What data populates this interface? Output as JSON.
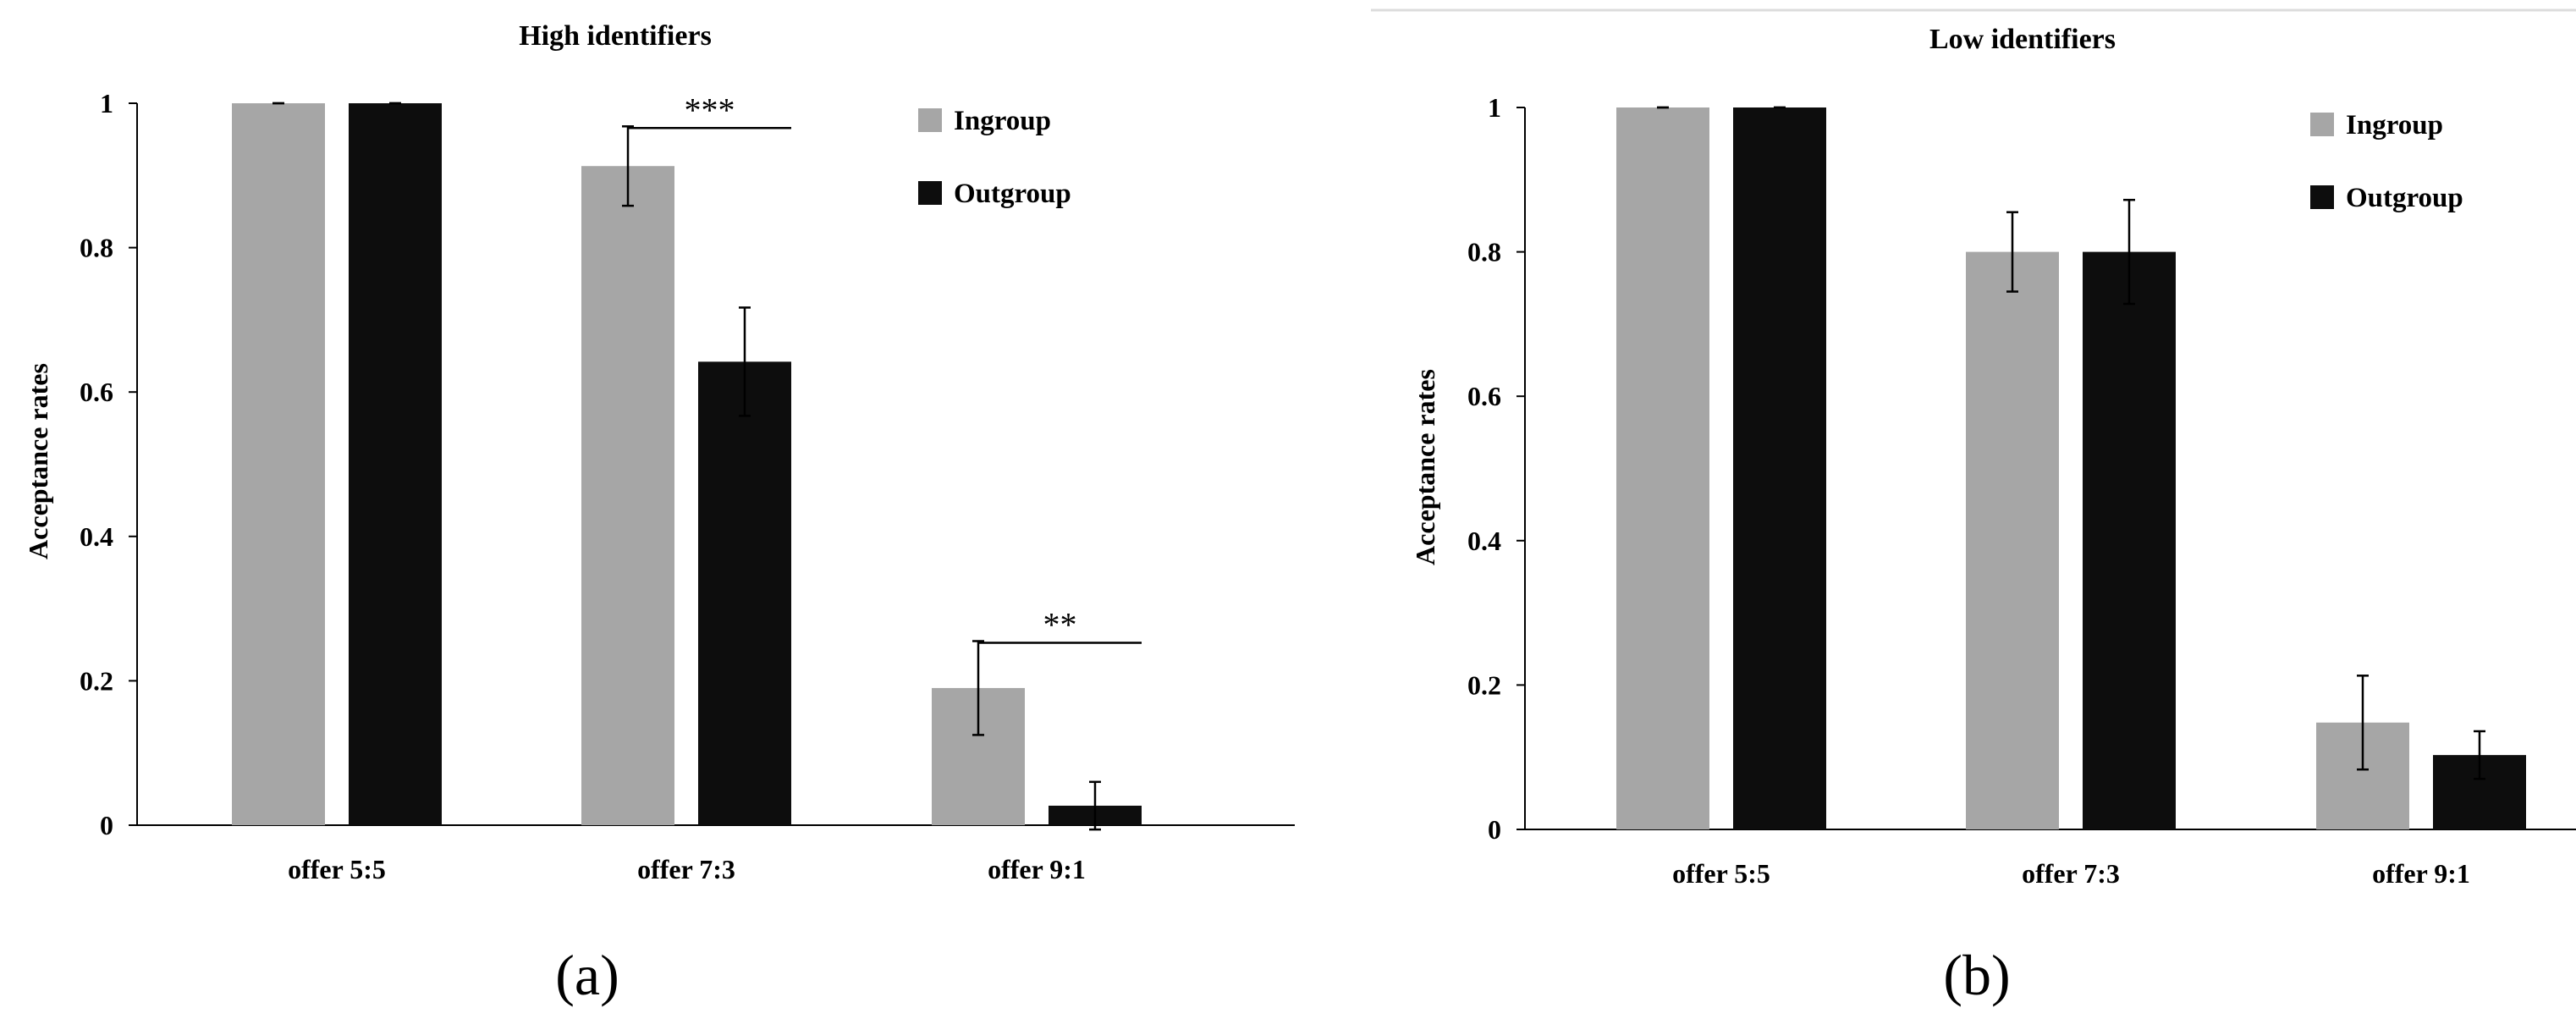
{
  "chart_data": [
    {
      "type": "bar",
      "title": "High identifiers",
      "ylabel": "Acceptance rates",
      "xlabel": "",
      "ylim": [
        0,
        1
      ],
      "yticks": [
        "0",
        "0.2",
        "0.4",
        "0.6",
        "0.8",
        "1"
      ],
      "categories": [
        "offer 5:5",
        "offer 7:3",
        "offer 9:1"
      ],
      "series": [
        {
          "name": "Ingroup",
          "color": "#a6a6a6",
          "values": [
            1.0,
            0.913,
            0.19
          ],
          "errors": [
            0.0,
            0.055,
            0.065
          ]
        },
        {
          "name": "Outgroup",
          "color": "#0d0d0d",
          "values": [
            1.0,
            0.642,
            0.027
          ],
          "errors": [
            0.0,
            0.075,
            0.033
          ]
        }
      ],
      "annotations": [
        {
          "text": "***",
          "category": 1
        },
        {
          "text": "**",
          "category": 2
        }
      ],
      "grid": false,
      "legend_position": "top-right",
      "panel_label": "(a)"
    },
    {
      "type": "bar",
      "title": "Low identifiers",
      "ylabel": "Acceptance rates",
      "xlabel": "",
      "ylim": [
        0,
        1
      ],
      "yticks": [
        "0",
        "0.2",
        "0.4",
        "0.6",
        "0.8",
        "1"
      ],
      "categories": [
        "offer 5:5",
        "offer 7:3",
        "offer 9:1"
      ],
      "series": [
        {
          "name": "Ingroup",
          "color": "#a6a6a6",
          "values": [
            1.0,
            0.8,
            0.148
          ],
          "errors": [
            0.0,
            0.055,
            0.065
          ]
        },
        {
          "name": "Outgroup",
          "color": "#0d0d0d",
          "values": [
            1.0,
            0.8,
            0.103
          ],
          "errors": [
            0.0,
            0.072,
            0.033
          ]
        }
      ],
      "annotations": [],
      "grid": false,
      "legend_position": "top-right",
      "panel_label": "(b)"
    }
  ]
}
